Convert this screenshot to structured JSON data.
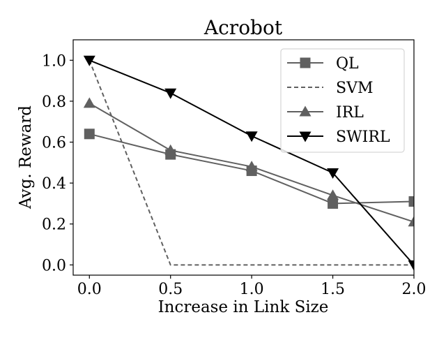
{
  "chart_data": {
    "type": "line",
    "title": "Acrobot",
    "xlabel": "Increase in Link Size",
    "ylabel": "Avg. Reward",
    "xlim": [
      -0.1,
      2.0
    ],
    "ylim": [
      -0.05,
      1.1
    ],
    "x_ticks": [
      0.0,
      0.5,
      1.0,
      1.5,
      2.0
    ],
    "x_tick_labels": [
      "0.0",
      "0.5",
      "1.0",
      "1.5",
      "2.0"
    ],
    "y_ticks": [
      0.0,
      0.2,
      0.4,
      0.6,
      0.8,
      1.0
    ],
    "y_tick_labels": [
      "0.0",
      "0.2",
      "0.4",
      "0.6",
      "0.8",
      "1.0"
    ],
    "grid": false,
    "legend_position": "top-right",
    "x": [
      0.0,
      0.5,
      1.0,
      1.5,
      2.0
    ],
    "series": [
      {
        "name": "QL",
        "values": [
          0.64,
          0.54,
          0.46,
          0.3,
          0.31
        ],
        "color": "#606060",
        "line_style": "solid",
        "marker": "square"
      },
      {
        "name": "SVM",
        "values": [
          1.0,
          0.0,
          0.0,
          0.0,
          0.0
        ],
        "color": "#606060",
        "line_style": "dashed",
        "marker": "none"
      },
      {
        "name": "IRL",
        "values": [
          0.79,
          0.56,
          0.48,
          0.34,
          0.21
        ],
        "color": "#606060",
        "line_style": "solid",
        "marker": "triangle-up"
      },
      {
        "name": "SWIRL",
        "values": [
          1.0,
          0.84,
          0.63,
          0.45,
          0.0
        ],
        "color": "#000000",
        "line_style": "solid",
        "marker": "triangle-down"
      }
    ]
  }
}
